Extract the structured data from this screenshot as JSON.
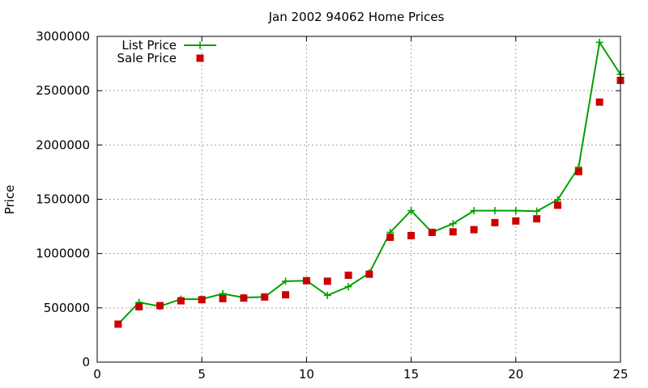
{
  "chart_data": {
    "type": "line",
    "title": "Jan 2002 94062 Home Prices",
    "xlabel": "",
    "ylabel": "Price",
    "xlim": [
      0,
      25
    ],
    "ylim": [
      0,
      3000000
    ],
    "x_ticks": [
      "0",
      "5",
      "10",
      "15",
      "20",
      "25"
    ],
    "x_tick_values": [
      0,
      5,
      10,
      15,
      20,
      25
    ],
    "y_ticks": [
      "0",
      "500000",
      "1000000",
      "1500000",
      "2000000",
      "2500000",
      "3000000"
    ],
    "y_tick_values": [
      0,
      500000,
      1000000,
      1500000,
      2000000,
      2500000,
      3000000
    ],
    "grid": true,
    "legend_position": "top-left",
    "series": [
      {
        "name": "List Price",
        "style": "line-with-plus-markers",
        "color": "#00a000",
        "x": [
          1,
          2,
          3,
          4,
          5,
          6,
          7,
          8,
          9,
          10,
          11,
          12,
          13,
          14,
          15,
          16,
          17,
          18,
          19,
          20,
          21,
          22,
          23,
          24,
          25
        ],
        "values": [
          350000,
          550000,
          515000,
          580000,
          580000,
          630000,
          595000,
          600000,
          745000,
          750000,
          615000,
          695000,
          820000,
          1195000,
          1395000,
          1195000,
          1275000,
          1395000,
          1395000,
          1395000,
          1390000,
          1495000,
          1795000,
          2945000,
          2650000
        ]
      },
      {
        "name": "Sale Price",
        "style": "square-markers",
        "color": "#cc0000",
        "x": [
          1,
          2,
          3,
          4,
          5,
          6,
          7,
          8,
          9,
          10,
          11,
          12,
          13,
          14,
          15,
          16,
          17,
          18,
          19,
          20,
          21,
          22,
          23,
          24,
          25
        ],
        "values": [
          350000,
          510000,
          520000,
          565000,
          575000,
          585000,
          590000,
          600000,
          620000,
          750000,
          745000,
          800000,
          810000,
          1150000,
          1165000,
          1195000,
          1200000,
          1220000,
          1285000,
          1300000,
          1320000,
          1445000,
          1755000,
          2395000,
          2595000
        ]
      }
    ]
  }
}
